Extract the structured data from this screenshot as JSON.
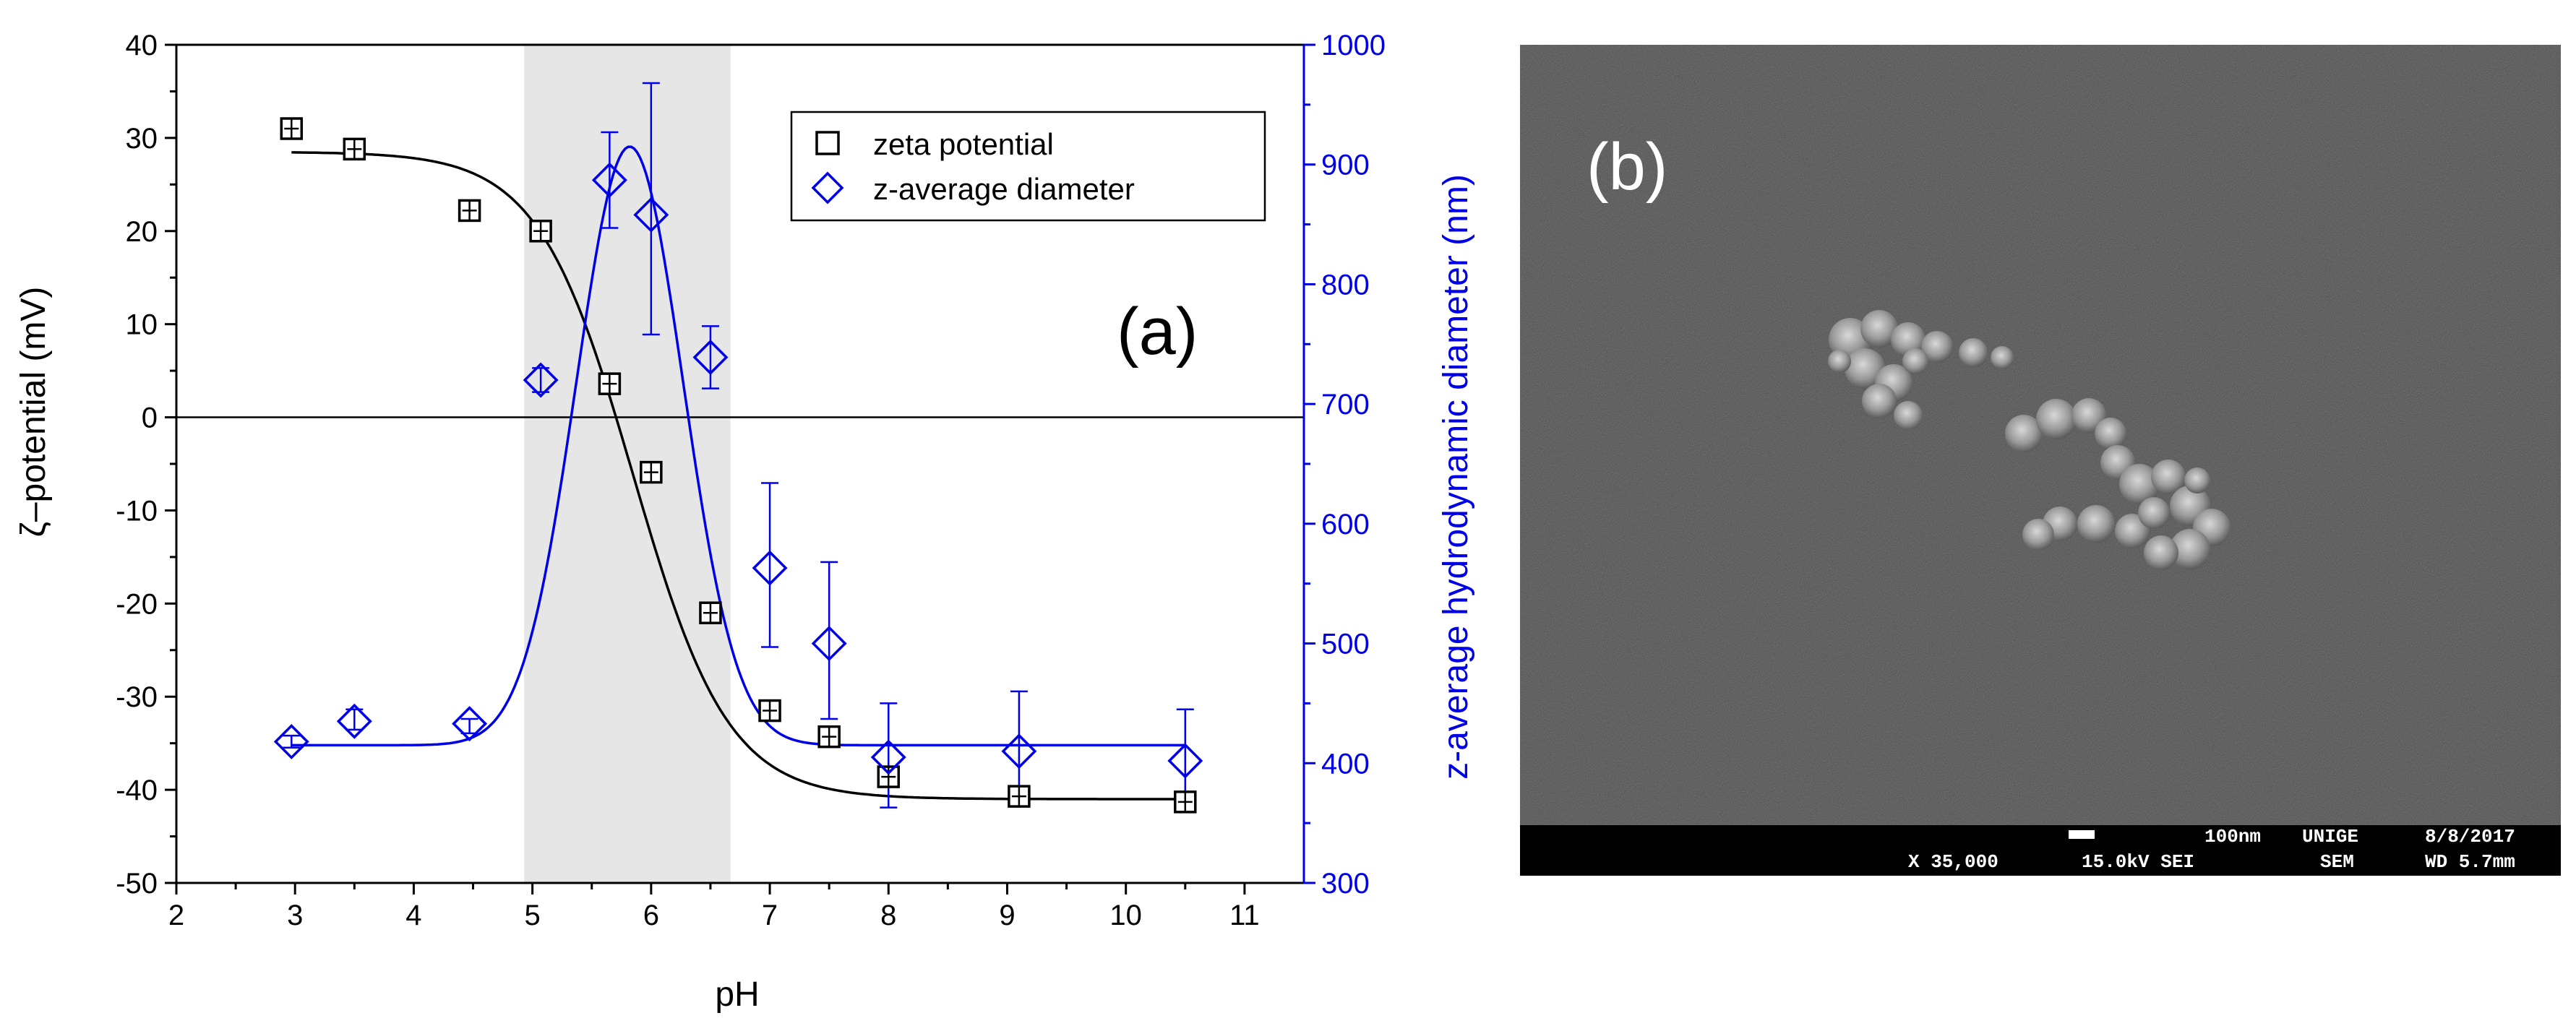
{
  "colors": {
    "zeta": "#000000",
    "diameter": "#0000e6",
    "shaded_region": "#e6e6e6",
    "sem_background": "#4a4a4a",
    "sem_bar": "#000000"
  },
  "chart_data": [
    {
      "type": "scatter",
      "panel_label": "(a)",
      "xlabel": "pH",
      "ylabel": "ζ–potential (mV)",
      "y2label": "z-average hydrodynamic diameter (nm)",
      "xlim": [
        2,
        11.5
      ],
      "ylim": [
        -50,
        40
      ],
      "y2lim": [
        300,
        1000
      ],
      "x_ticks": [
        2,
        3,
        4,
        5,
        6,
        7,
        8,
        9,
        10,
        11
      ],
      "x_tick_labels": [
        "2",
        "3",
        "4",
        "5",
        "6",
        "7",
        "8",
        "9",
        "10",
        "11"
      ],
      "y_ticks": [
        40,
        30,
        20,
        10,
        0,
        -10,
        -20,
        -30,
        -40,
        -50
      ],
      "y_tick_labels": [
        "40",
        "30",
        "20",
        "10",
        "0",
        "-10",
        "-20",
        "-30",
        "-40",
        "-50"
      ],
      "y2_ticks": [
        1000,
        900,
        800,
        700,
        600,
        500,
        400,
        300
      ],
      "y2_tick_labels": [
        "1000",
        "900",
        "800",
        "700",
        "600",
        "500",
        "400",
        "300"
      ],
      "shaded_x_range": [
        4.93,
        6.67
      ],
      "zero_line": true,
      "legend": [
        {
          "label": "zeta potential",
          "marker": "square"
        },
        {
          "label": "z-average diameter",
          "marker": "diamond"
        }
      ],
      "series": [
        {
          "name": "zeta potential",
          "axis": "left",
          "marker": "square",
          "x": [
            2.97,
            3.5,
            4.47,
            5.07,
            5.65,
            6.0,
            6.5,
            7.0,
            7.5,
            8.0,
            9.1,
            10.5
          ],
          "y": [
            31,
            28.8,
            22.2,
            20,
            3.6,
            -5.9,
            -21,
            -31.5,
            -34.3,
            -38.6,
            -40.7,
            -41.3
          ],
          "yerr": [
            1,
            1,
            1,
            1,
            1,
            1,
            1,
            1,
            1,
            1,
            1,
            1
          ],
          "fit": {
            "model": "sigmoid",
            "top": 28.5,
            "bottom": -41.0,
            "x0": 5.85,
            "width": 0.4,
            "x_from": 2.97,
            "x_to": 10.5
          }
        },
        {
          "name": "z-average diameter",
          "axis": "right",
          "marker": "diamond",
          "x": [
            2.97,
            3.5,
            4.47,
            5.07,
            5.65,
            6.0,
            6.5,
            7.0,
            7.5,
            8.0,
            9.1,
            10.5
          ],
          "y": [
            418,
            435,
            433,
            720,
            887,
            858,
            739,
            563,
            500,
            405,
            410,
            402
          ],
          "err_low": [
            413,
            428,
            425,
            710,
            847,
            758,
            713,
            497,
            437,
            363,
            377,
            365
          ],
          "err_high": [
            423,
            445,
            437,
            730,
            927,
            968,
            765,
            634,
            568,
            450,
            460,
            445
          ],
          "fit": {
            "model": "gaussian",
            "base": 415,
            "amplitude": 500,
            "center": 5.82,
            "sigma": 0.45,
            "x_from": 2.97,
            "x_to": 10.5
          }
        }
      ]
    }
  ],
  "sem_panel": {
    "panel_label": "(b)",
    "scale_label": "100nm",
    "institution": "UNIGE",
    "date": "8/8/2017",
    "magnification": "X 35,000",
    "voltage_mode": "15.0kV SEI",
    "mode": "SEM",
    "working_distance": "WD 5.7mm"
  }
}
